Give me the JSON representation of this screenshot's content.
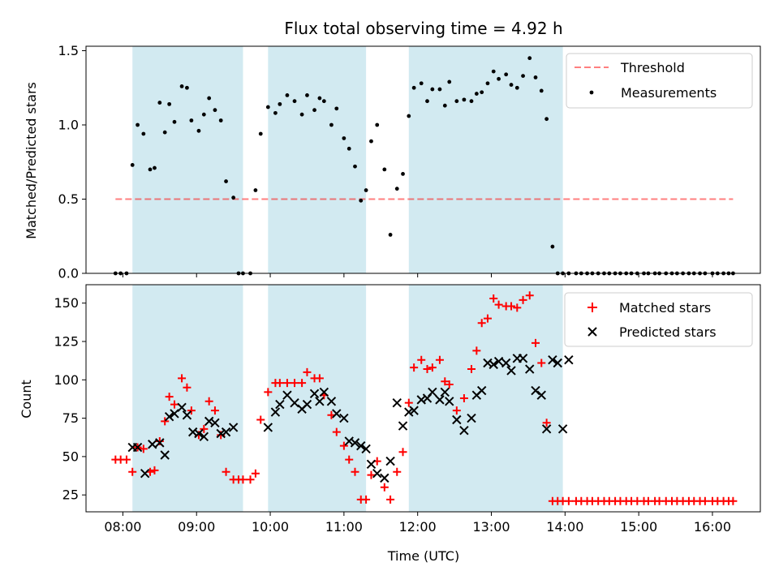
{
  "figure": {
    "title": "Flux total observing time = 4.92 h",
    "xlabel": "Time (UTC)",
    "x_ticks": [
      {
        "v": 8.0,
        "label": "08:00"
      },
      {
        "v": 9.0,
        "label": "09:00"
      },
      {
        "v": 10.0,
        "label": "10:00"
      },
      {
        "v": 11.0,
        "label": "11:00"
      },
      {
        "v": 12.0,
        "label": "12:00"
      },
      {
        "v": 13.0,
        "label": "13:00"
      },
      {
        "v": 14.0,
        "label": "14:00"
      },
      {
        "v": 15.0,
        "label": "15:00"
      },
      {
        "v": 16.0,
        "label": "16:00"
      }
    ],
    "xlim": [
      7.5,
      16.65
    ],
    "shaded_intervals": [
      [
        8.13,
        9.63
      ],
      [
        9.97,
        11.3
      ],
      [
        11.88,
        13.97
      ]
    ],
    "colors": {
      "shade": "#add8e6",
      "threshold": "#ff0000",
      "measurement": "#000000",
      "matched": "#ff0000",
      "predicted": "#000000"
    }
  },
  "chart_data": [
    {
      "type": "scatter",
      "ylabel": "Matched/Predicted stars",
      "ylim": [
        0,
        1.53
      ],
      "y_ticks": [
        {
          "v": 0,
          "label": "0.0"
        },
        {
          "v": 0.5,
          "label": "0.5"
        },
        {
          "v": 1.0,
          "label": "1.0"
        },
        {
          "v": 1.5,
          "label": "1.5"
        }
      ],
      "legend": [
        "Threshold",
        "Measurements"
      ],
      "legend_position": "top-right",
      "threshold": {
        "name": "Threshold",
        "value": 0.5,
        "x_range": [
          7.9,
          16.28
        ]
      },
      "series": [
        {
          "name": "Measurements",
          "x": [
            7.9,
            7.97,
            8.05,
            8.13,
            8.2,
            8.28,
            8.37,
            8.43,
            8.5,
            8.57,
            8.63,
            8.7,
            8.8,
            8.87,
            8.93,
            9.03,
            9.1,
            9.17,
            9.25,
            9.33,
            9.4,
            9.5,
            9.57,
            9.63,
            9.73,
            9.8,
            9.87,
            9.97,
            10.07,
            10.13,
            10.23,
            10.33,
            10.43,
            10.5,
            10.6,
            10.67,
            10.73,
            10.83,
            10.9,
            11.0,
            11.07,
            11.15,
            11.23,
            11.3,
            11.37,
            11.45,
            11.55,
            11.63,
            11.72,
            11.8,
            11.88,
            11.95,
            12.05,
            12.13,
            12.2,
            12.3,
            12.37,
            12.43,
            12.53,
            12.63,
            12.73,
            12.8,
            12.87,
            12.95,
            13.03,
            13.1,
            13.2,
            13.27,
            13.35,
            13.43,
            13.52,
            13.6,
            13.68,
            13.75,
            13.83,
            13.9,
            13.97,
            14.05,
            14.15,
            14.22,
            14.3,
            14.37,
            14.45,
            14.53,
            14.6,
            14.68,
            14.75,
            14.83,
            14.9,
            14.98,
            15.07,
            15.13,
            15.22,
            15.28,
            15.37,
            15.45,
            15.52,
            15.6,
            15.68,
            15.75,
            15.83,
            15.9,
            16.0,
            16.07,
            16.15,
            16.22,
            16.28
          ],
          "y": [
            0,
            0,
            0,
            0.73,
            1.0,
            0.94,
            0.7,
            0.71,
            1.15,
            0.95,
            1.14,
            1.02,
            1.26,
            1.25,
            1.03,
            0.96,
            1.07,
            1.18,
            1.1,
            1.03,
            0.62,
            0.51,
            0,
            0,
            0,
            0.56,
            0.94,
            1.12,
            1.08,
            1.14,
            1.2,
            1.16,
            1.07,
            1.2,
            1.1,
            1.18,
            1.16,
            1.0,
            1.11,
            0.91,
            0.84,
            0.72,
            0.49,
            0.56,
            0.89,
            1.0,
            0.7,
            0.26,
            0.57,
            0.67,
            1.06,
            1.25,
            1.28,
            1.16,
            1.24,
            1.24,
            1.13,
            1.29,
            1.16,
            1.17,
            1.16,
            1.21,
            1.22,
            1.28,
            1.36,
            1.31,
            1.34,
            1.27,
            1.25,
            1.33,
            1.45,
            1.32,
            1.23,
            1.04,
            0.18,
            0,
            0,
            0,
            0,
            0,
            0,
            0,
            0,
            0,
            0,
            0,
            0,
            0,
            0,
            0,
            0,
            0,
            0,
            0,
            0,
            0,
            0,
            0,
            0,
            0,
            0,
            0,
            0,
            0,
            0,
            0,
            0
          ]
        }
      ]
    },
    {
      "type": "scatter",
      "xlabel": "Time (UTC)",
      "ylabel": "Count",
      "ylim": [
        14,
        162
      ],
      "y_ticks": [
        {
          "v": 25,
          "label": "25"
        },
        {
          "v": 50,
          "label": "50"
        },
        {
          "v": 75,
          "label": "75"
        },
        {
          "v": 100,
          "label": "100"
        },
        {
          "v": 125,
          "label": "125"
        },
        {
          "v": 150,
          "label": "150"
        }
      ],
      "legend": [
        "Matched stars",
        "Predicted stars"
      ],
      "legend_position": "top-right",
      "series": [
        {
          "name": "Matched stars",
          "x": [
            7.9,
            7.97,
            8.05,
            8.13,
            8.2,
            8.28,
            8.37,
            8.43,
            8.5,
            8.57,
            8.63,
            8.7,
            8.8,
            8.87,
            8.93,
            9.03,
            9.1,
            9.17,
            9.25,
            9.33,
            9.4,
            9.5,
            9.57,
            9.63,
            9.73,
            9.8,
            9.87,
            9.97,
            10.07,
            10.13,
            10.23,
            10.33,
            10.43,
            10.5,
            10.6,
            10.67,
            10.73,
            10.83,
            10.9,
            11.0,
            11.07,
            11.15,
            11.23,
            11.3,
            11.37,
            11.45,
            11.55,
            11.63,
            11.72,
            11.8,
            11.88,
            11.95,
            12.05,
            12.13,
            12.2,
            12.3,
            12.37,
            12.43,
            12.53,
            12.63,
            12.73,
            12.8,
            12.87,
            12.95,
            13.03,
            13.1,
            13.2,
            13.27,
            13.35,
            13.43,
            13.52,
            13.6,
            13.68,
            13.75,
            13.83,
            13.9,
            13.97,
            14.05,
            14.15,
            14.22,
            14.3,
            14.37,
            14.45,
            14.53,
            14.6,
            14.68,
            14.75,
            14.83,
            14.9,
            14.98,
            15.07,
            15.13,
            15.22,
            15.28,
            15.37,
            15.45,
            15.52,
            15.6,
            15.68,
            15.75,
            15.83,
            15.9,
            16.0,
            16.07,
            16.15,
            16.22,
            16.28
          ],
          "y": [
            48,
            48,
            48,
            40,
            56,
            55,
            40,
            41,
            60,
            73,
            89,
            84,
            101,
            95,
            80,
            64,
            68,
            86,
            80,
            64,
            40,
            35,
            35,
            35,
            35,
            39,
            74,
            92,
            98,
            98,
            98,
            98,
            98,
            105,
            101,
            101,
            90,
            77,
            66,
            57,
            48,
            40,
            22,
            22,
            38,
            47,
            30,
            22,
            40,
            53,
            85,
            108,
            113,
            107,
            108,
            113,
            99,
            97,
            80,
            88,
            107,
            119,
            137,
            140,
            153,
            149,
            148,
            148,
            147,
            152,
            155,
            124,
            111,
            72,
            21,
            21,
            21,
            21,
            21,
            21,
            21,
            21,
            21,
            21,
            21,
            21,
            21,
            21,
            21,
            21,
            21,
            21,
            21,
            21,
            21,
            21,
            21,
            21,
            21,
            21,
            21,
            21,
            21,
            21,
            21,
            21,
            21
          ]
        },
        {
          "name": "Predicted stars",
          "x": [
            8.13,
            8.2,
            8.3,
            8.4,
            8.5,
            8.57,
            8.63,
            8.7,
            8.8,
            8.87,
            8.95,
            9.03,
            9.1,
            9.17,
            9.25,
            9.33,
            9.4,
            9.5,
            9.97,
            10.07,
            10.13,
            10.23,
            10.33,
            10.43,
            10.5,
            10.6,
            10.67,
            10.73,
            10.83,
            10.9,
            11.0,
            11.07,
            11.15,
            11.23,
            11.3,
            11.37,
            11.45,
            11.55,
            11.63,
            11.72,
            11.8,
            11.88,
            11.95,
            12.05,
            12.13,
            12.2,
            12.3,
            12.37,
            12.43,
            12.53,
            12.63,
            12.73,
            12.8,
            12.87,
            12.95,
            13.03,
            13.1,
            13.2,
            13.27,
            13.35,
            13.43,
            13.52,
            13.6,
            13.68,
            13.75,
            13.83,
            13.9,
            13.97,
            14.05
          ],
          "y": [
            56,
            56,
            39,
            58,
            59,
            51,
            76,
            78,
            82,
            77,
            66,
            65,
            63,
            73,
            72,
            65,
            66,
            69,
            69,
            79,
            84,
            90,
            85,
            81,
            84,
            91,
            86,
            92,
            86,
            78,
            75,
            60,
            59,
            57,
            55,
            45,
            39,
            36,
            47,
            85,
            70,
            79,
            80,
            87,
            88,
            92,
            87,
            92,
            86,
            74,
            67,
            75,
            90,
            93,
            111,
            110,
            112,
            111,
            106,
            114,
            114,
            107,
            93,
            90,
            68,
            113,
            111,
            68,
            113
          ]
        }
      ]
    }
  ]
}
